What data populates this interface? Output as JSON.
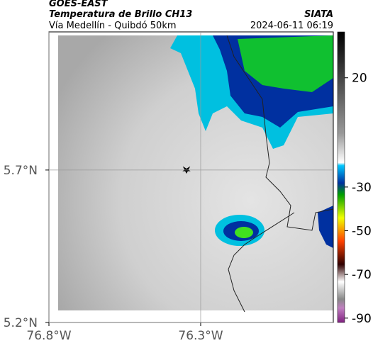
{
  "header": {
    "title": "GOES-EAST",
    "subtitle": "Temperatura de Brillo CH13",
    "route": "Vía Medellín - Quibdó 50km",
    "source": "SIATA",
    "timestamp": "2024-06-11 06:19"
  },
  "map": {
    "xlim": [
      -76.8,
      -75.863
    ],
    "ylim": [
      5.2,
      6.153
    ],
    "xticks": [
      {
        "value": -76.8,
        "label": "76.8°W"
      },
      {
        "value": -76.3,
        "label": "76.3°W"
      }
    ],
    "yticks": [
      {
        "value": 5.7,
        "label": "5.7°N"
      },
      {
        "value": 5.2,
        "label": "5.2°N"
      }
    ]
  },
  "colorbar": {
    "clim": [
      -92,
      41
    ],
    "ticks": [
      20,
      -30,
      -50,
      -70,
      -90
    ]
  }
}
